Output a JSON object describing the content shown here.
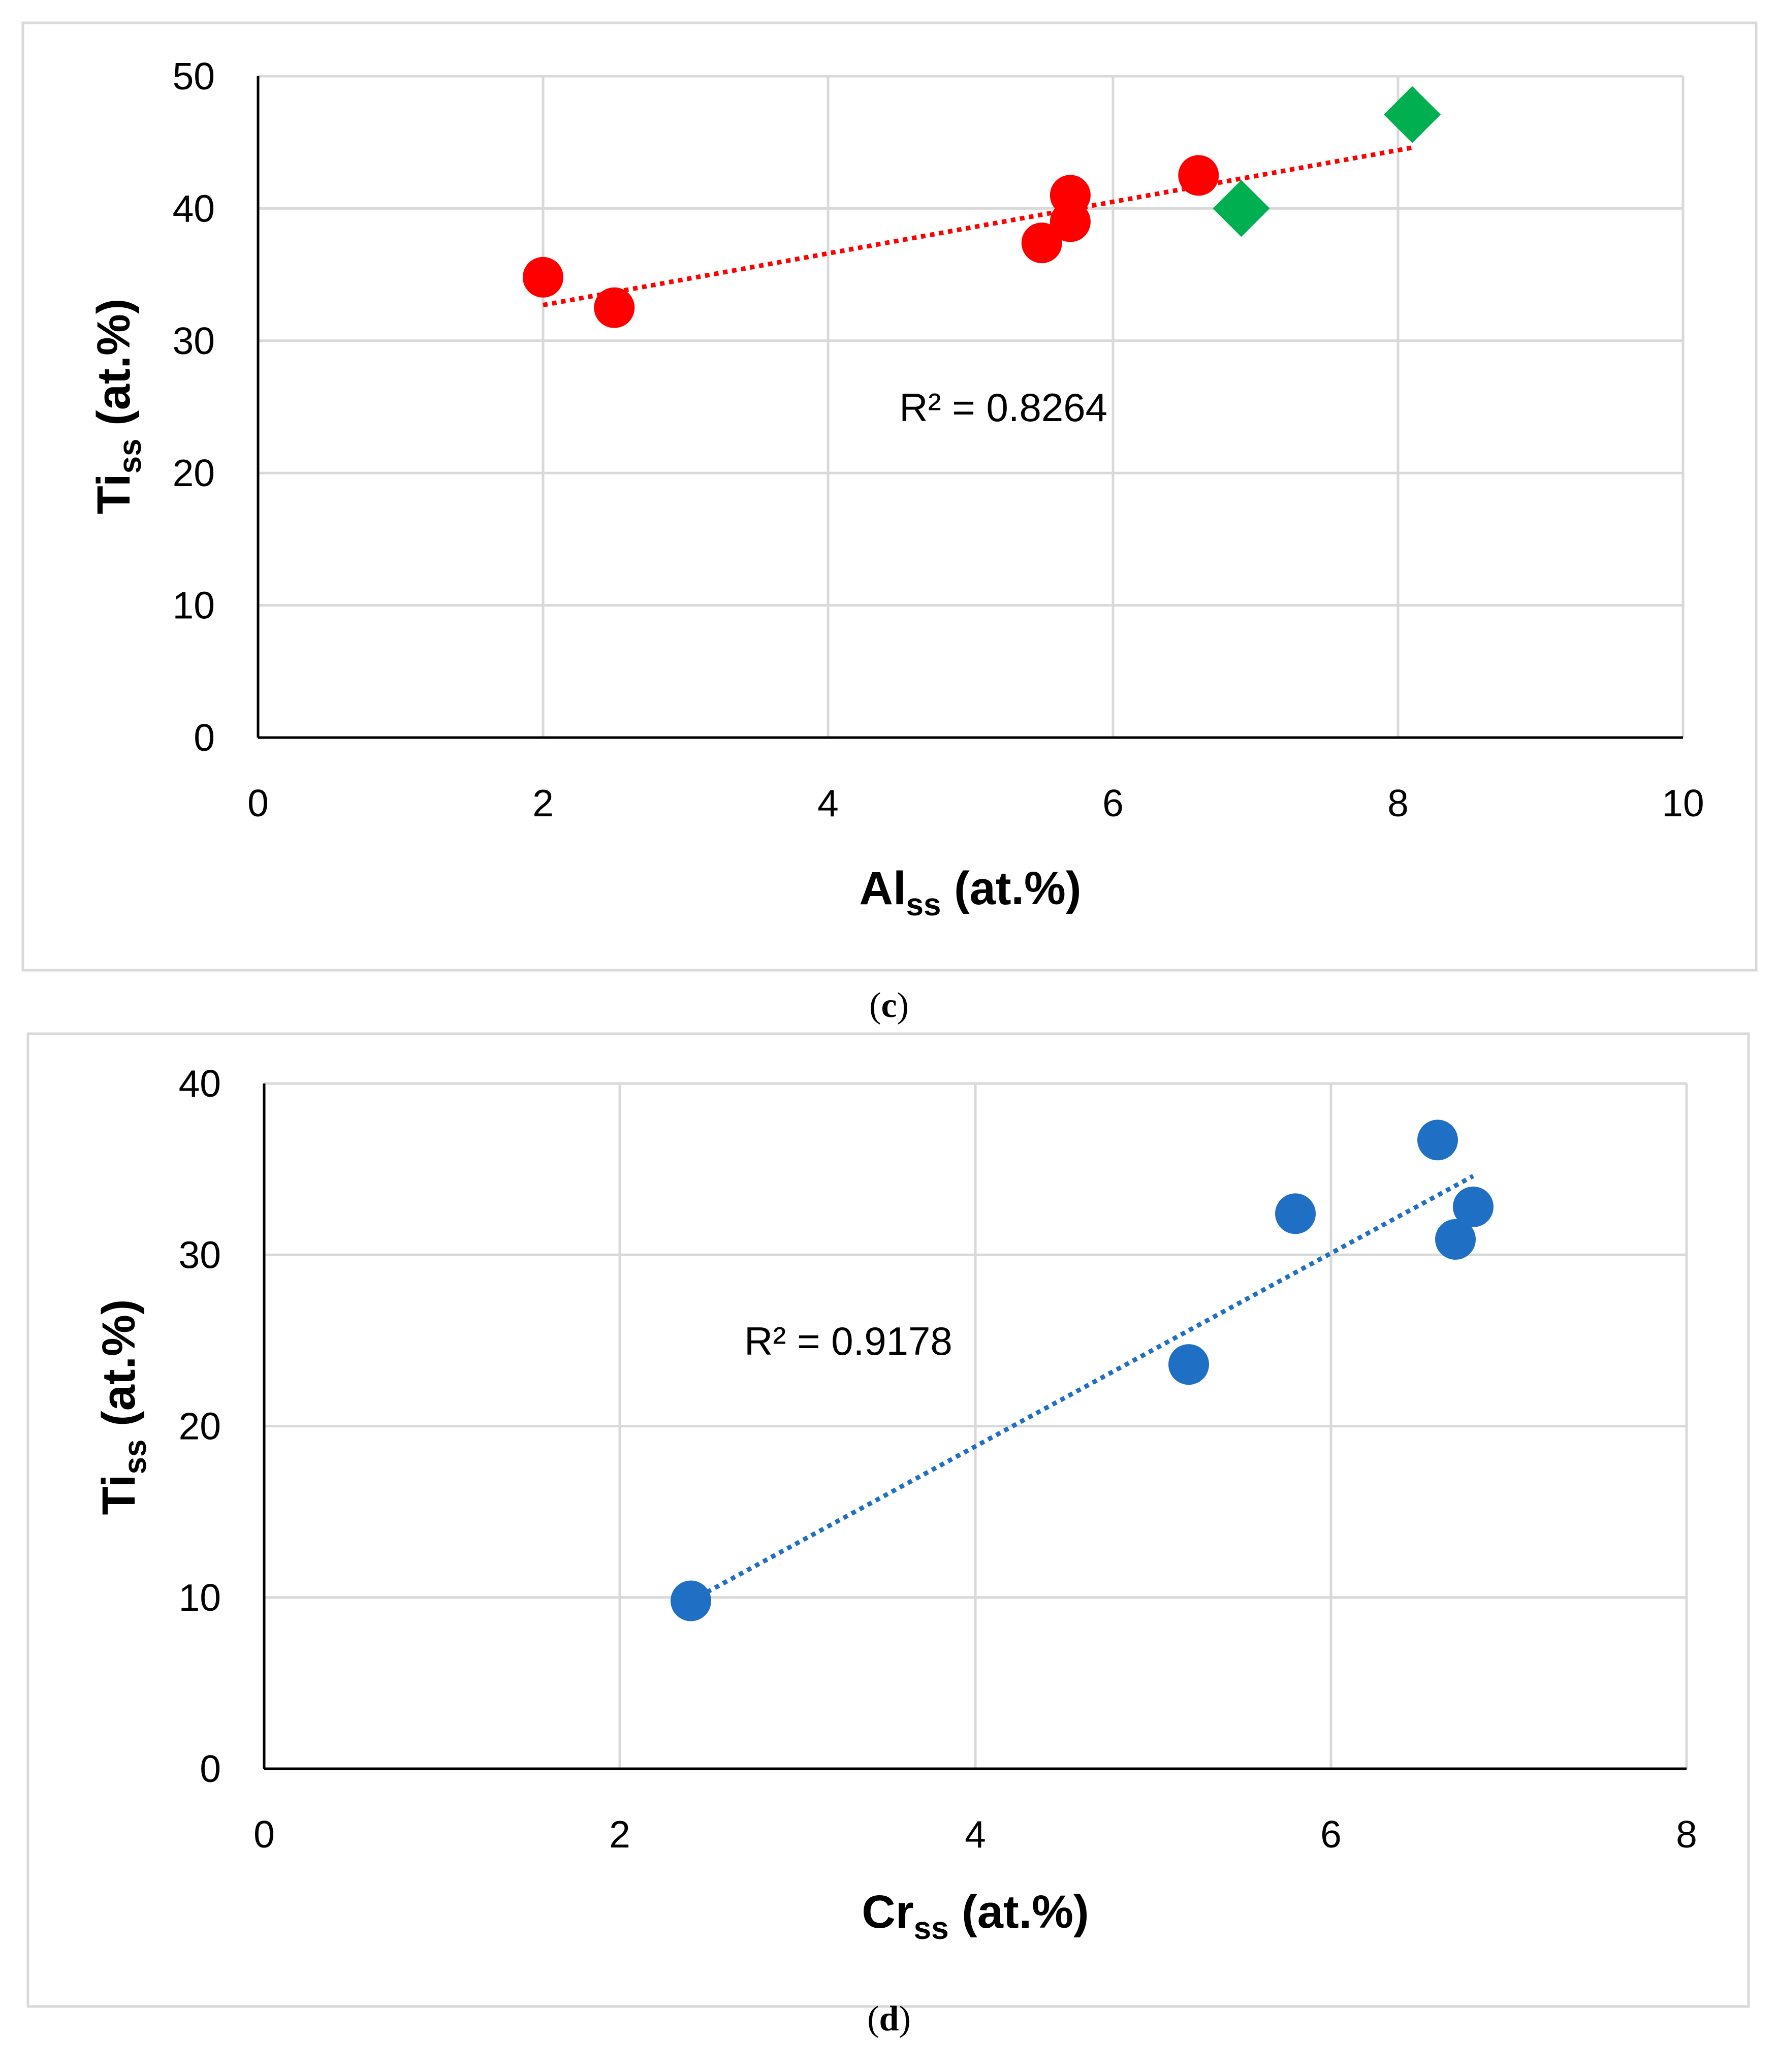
{
  "chart_data": [
    {
      "type": "scatter",
      "panel": "(c)",
      "caption_letter": "c",
      "xlabel": {
        "main": "Al",
        "sub": "ss",
        "unit": " (at.%)"
      },
      "ylabel": {
        "main": "Ti",
        "sub": "ss",
        "unit": " (at.%)"
      },
      "xlim": [
        0,
        10
      ],
      "ylim": [
        0,
        50
      ],
      "xticks": [
        0,
        2,
        4,
        6,
        8,
        10
      ],
      "yticks": [
        0,
        10,
        20,
        30,
        40,
        50
      ],
      "grid": true,
      "series": [
        {
          "name": "circles",
          "marker": "circle",
          "color": "#ff0000",
          "points": [
            [
              2.0,
              34.8
            ],
            [
              2.5,
              32.5
            ],
            [
              5.5,
              37.4
            ],
            [
              5.7,
              41.0
            ],
            [
              5.7,
              39.0
            ],
            [
              6.6,
              42.5
            ]
          ]
        },
        {
          "name": "diamonds",
          "marker": "diamond",
          "color": "#00b050",
          "points": [
            [
              6.9,
              40.0
            ],
            [
              8.1,
              47.1
            ]
          ]
        }
      ],
      "trendline": {
        "color": "#ff0000",
        "from": [
          2.0,
          32.7
        ],
        "to": [
          8.1,
          44.6
        ]
      },
      "annotation": {
        "text": "R² = 0.8264",
        "x": 4.5,
        "y": 25
      }
    },
    {
      "type": "scatter",
      "panel": "(d)",
      "caption_letter": "d",
      "xlabel": {
        "main": "Cr",
        "sub": "ss",
        "unit": " (at.%)"
      },
      "ylabel": {
        "main": "Ti",
        "sub": "ss",
        "unit": " (at.%)"
      },
      "xlim": [
        0,
        8
      ],
      "ylim": [
        0,
        40
      ],
      "xticks": [
        0,
        2,
        4,
        6,
        8
      ],
      "yticks": [
        0,
        10,
        20,
        30,
        40
      ],
      "grid": true,
      "series": [
        {
          "name": "circles",
          "marker": "circle",
          "color": "#1f6fc5",
          "points": [
            [
              2.4,
              9.8
            ],
            [
              5.2,
              23.6
            ],
            [
              5.8,
              32.4
            ],
            [
              6.6,
              36.7
            ],
            [
              6.7,
              30.9
            ],
            [
              6.8,
              32.8
            ]
          ]
        }
      ],
      "trendline": {
        "color": "#1f6fc5",
        "from": [
          2.4,
          9.8
        ],
        "to": [
          6.8,
          34.6
        ]
      },
      "annotation": {
        "text": "R² = 0.9178",
        "x": 2.7,
        "y": 25
      }
    }
  ]
}
